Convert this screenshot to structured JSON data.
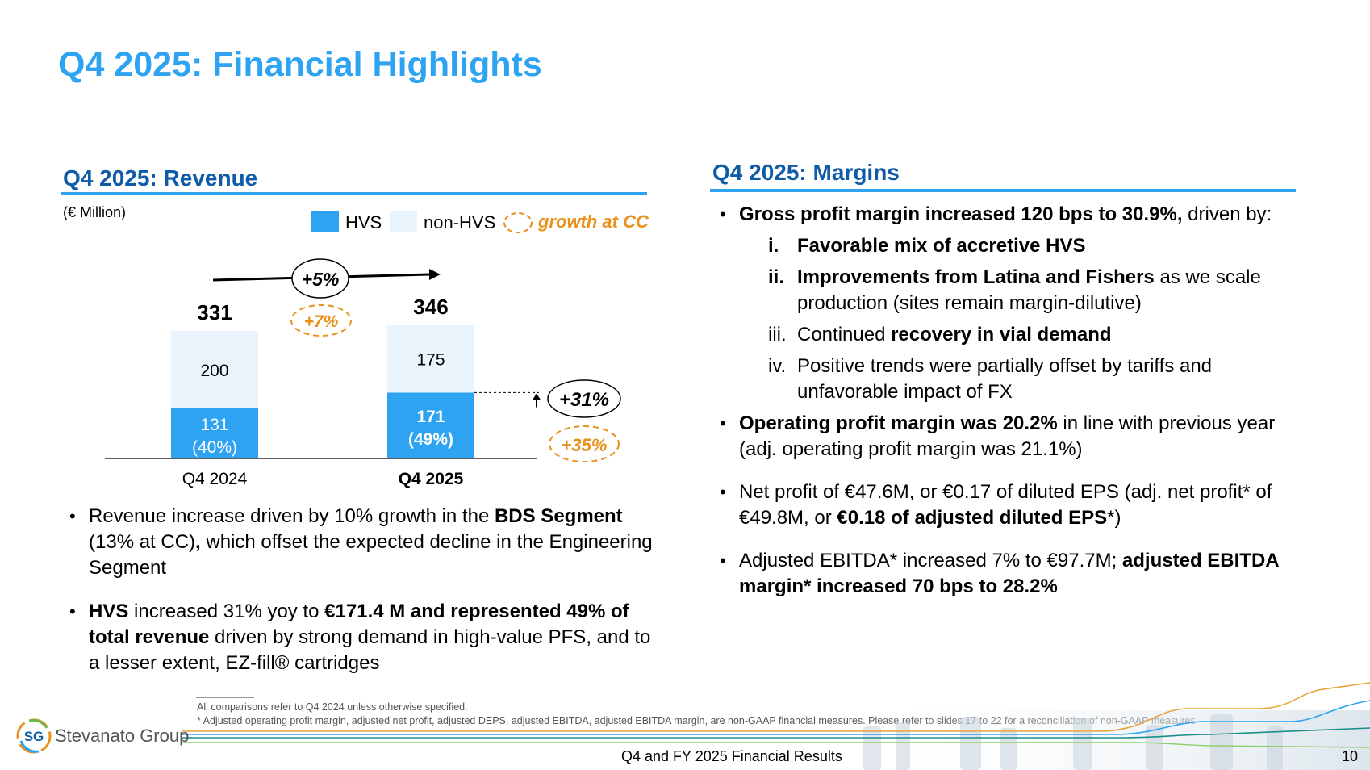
{
  "page": {
    "title": "Q4 2025: Financial Highlights",
    "footer": "Q4 and FY 2025 Financial Results",
    "page_number": "10",
    "logo_mark": "SG",
    "logo_name": "Stevanato Group"
  },
  "revenue": {
    "heading": "Q4 2025: Revenue",
    "unit_note": "(€ Million)",
    "legend": {
      "hvs": "HVS",
      "non_hvs": "non-HVS",
      "growth_cc": "growth at CC"
    },
    "colors": {
      "hvs": "#2ea3f2",
      "non_hvs": "#eaf4fd",
      "growth_cc": "#e8921e",
      "heading": "#0f5ba7",
      "title": "#2ea3f2"
    },
    "growth_total": "+5%",
    "growth_total_cc": "+7%",
    "growth_hvs": "+31%",
    "growth_hvs_cc": "+35%",
    "bullets": [
      {
        "parts": [
          {
            "t": "Revenue increase driven by 10% growth in the ",
            "b": false
          },
          {
            "t": "BDS Segment",
            "b": true
          },
          {
            "t": " (13% at CC)",
            "b": false
          },
          {
            "t": ",",
            "b": true
          },
          {
            "t": " which offset the expected decline in the Engineering Segment",
            "b": false
          }
        ]
      },
      {
        "parts": [
          {
            "t": "HVS",
            "b": true
          },
          {
            "t": " increased 31% yoy to ",
            "b": false
          },
          {
            "t": "€171.4 M and represented 49% of total revenue",
            "b": true
          },
          {
            "t": " driven by strong demand in high-value PFS, and to a lesser extent, EZ-fill® cartridges",
            "b": false
          }
        ]
      }
    ]
  },
  "chart_data": {
    "type": "bar",
    "stacked": true,
    "categories": [
      "Q4 2024",
      "Q4 2025"
    ],
    "series": [
      {
        "name": "HVS",
        "values": [
          131,
          171
        ],
        "labels": [
          "131\n(40%)",
          "171\n(49%)"
        ]
      },
      {
        "name": "non-HVS",
        "values": [
          200,
          175
        ],
        "labels": [
          "200",
          "175"
        ]
      }
    ],
    "totals": [
      331,
      346
    ],
    "bold_category": "Q4 2025",
    "grid": false,
    "legend_position": "top-right"
  },
  "margins": {
    "heading": "Q4 2025: Margins",
    "bullets": [
      {
        "parts": [
          {
            "t": "Gross profit margin increased 120 bps to 30.9%,",
            "b": true
          },
          {
            "t": " driven by:",
            "b": false
          }
        ],
        "sub": [
          {
            "num": "i.",
            "num_bold": true,
            "parts": [
              {
                "t": "Favorable mix of accretive HVS",
                "b": true
              }
            ]
          },
          {
            "num": "ii.",
            "num_bold": true,
            "parts": [
              {
                "t": "Improvements from Latina and Fishers",
                "b": true
              },
              {
                "t": " as we scale production (sites remain margin-dilutive)",
                "b": false
              }
            ]
          },
          {
            "num": "iii.",
            "num_bold": false,
            "parts": [
              {
                "t": "Continued ",
                "b": false
              },
              {
                "t": "recovery in vial demand",
                "b": true
              }
            ]
          },
          {
            "num": "iv.",
            "num_bold": false,
            "parts": [
              {
                "t": "Positive trends were partially offset by tariffs and unfavorable impact of FX",
                "b": false
              }
            ]
          }
        ]
      },
      {
        "parts": [
          {
            "t": "Operating profit margin was 20.2%",
            "b": true
          },
          {
            "t": " in line with previous year (adj. operating profit margin was 21.1%)",
            "b": false
          }
        ]
      },
      {
        "parts": [
          {
            "t": "Net profit of €47.6M, or €0.17 of diluted EPS (adj. net profit* of €49.8M, or ",
            "b": false
          },
          {
            "t": "€0.18 of adjusted diluted EPS",
            "b": true
          },
          {
            "t": "*)",
            "b": false
          }
        ]
      },
      {
        "parts": [
          {
            "t": "Adjusted EBITDA* increased 7% to €97.7M; ",
            "b": false
          },
          {
            "t": "adjusted EBITDA margin* increased 70 bps to 28.2%",
            "b": true
          }
        ]
      }
    ]
  },
  "footnotes": {
    "line1": "All comparisons refer to Q4 2024 unless otherwise specified.",
    "line2": "* Adjusted operating profit margin, adjusted net profit, adjusted DEPS, adjusted EBITDA, adjusted EBITDA margin, are non-GAAP financial measures. Please refer to slides 17 to 22 for a reconciliation of non-GAAP measures"
  }
}
